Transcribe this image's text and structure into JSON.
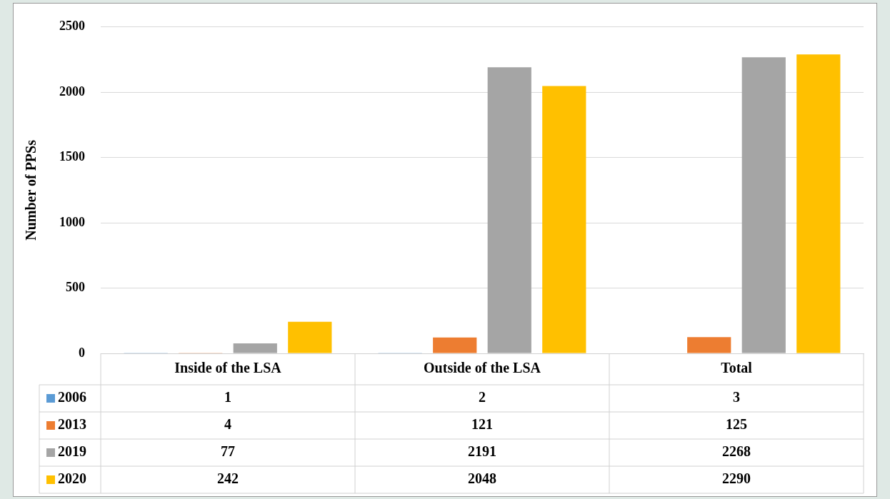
{
  "chart_data": {
    "type": "bar",
    "ylabel": "Number of PPSs",
    "categories": [
      "Inside of the LSA",
      "Outside of the LSA",
      "Total"
    ],
    "series": [
      {
        "name": "2006",
        "color": "#5b9bd5",
        "values": [
          1,
          2,
          3
        ]
      },
      {
        "name": "2013",
        "color": "#ed7d31",
        "values": [
          4,
          121,
          125
        ]
      },
      {
        "name": "2019",
        "color": "#a5a5a5",
        "values": [
          77,
          2191,
          2268
        ]
      },
      {
        "name": "2020",
        "color": "#ffc000",
        "values": [
          242,
          2048,
          2290
        ]
      }
    ],
    "ylim": [
      0,
      2500
    ],
    "yticks": [
      0,
      500,
      1000,
      1500,
      2000,
      2500
    ],
    "grid": "y",
    "legend": "bottom",
    "data_labels": true
  }
}
